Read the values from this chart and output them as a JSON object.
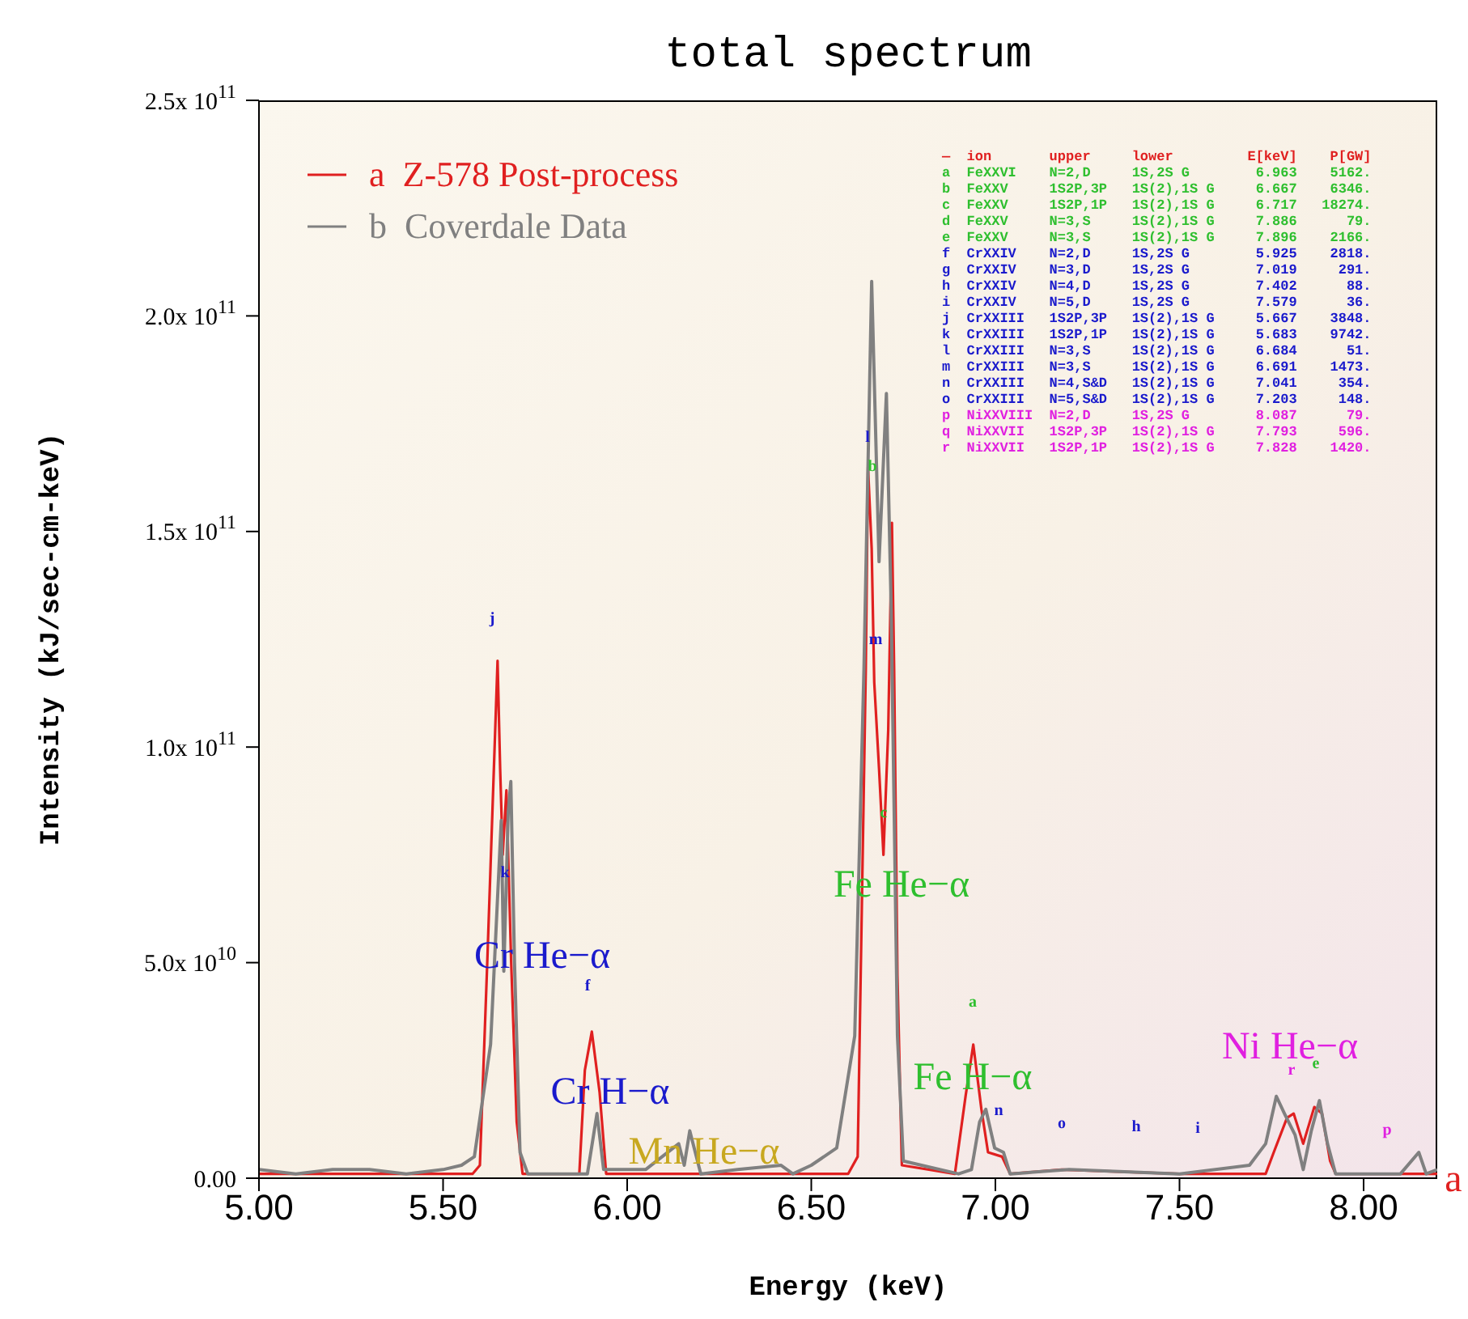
{
  "chart_data": {
    "type": "line",
    "title": "total spectrum",
    "xlabel": "Energy (keV)",
    "ylabel": "Intensity (kJ/sec-cm-keV)",
    "xlim": [
      5,
      8.2
    ],
    "xticks": [
      {
        "value": 5,
        "label": "5.00"
      },
      {
        "value": 5.5,
        "label": "5.50"
      },
      {
        "value": 6,
        "label": "6.00"
      },
      {
        "value": 6.5,
        "label": "6.50"
      },
      {
        "value": 7,
        "label": "7.00"
      },
      {
        "value": 7.5,
        "label": "7.50"
      },
      {
        "value": 8,
        "label": "8.00"
      }
    ],
    "ylim": [
      0,
      250000000000.0
    ],
    "yticks": [
      {
        "value": 0,
        "label": "0.00"
      },
      {
        "value": 50000000000.0,
        "label": "5.0x 10$^{10}$"
      },
      {
        "value": 100000000000.0,
        "label": "1.0x 10$^{11}$"
      },
      {
        "value": 150000000000.0,
        "label": "1.5x 10$^{11}$"
      },
      {
        "value": 200000000000.0,
        "label": "2.0x 10$^{11}$"
      },
      {
        "value": 250000000000.0,
        "label": "2.5x 10$^{11}$"
      }
    ],
    "legend": "top left",
    "series": [
      {
        "name": "a  Z-578 Post-process",
        "color": "#e02020",
        "x": [
          5.0,
          5.2,
          5.4,
          5.58,
          5.6,
          5.62,
          5.648,
          5.655,
          5.662,
          5.672,
          5.685,
          5.7,
          5.716,
          5.87,
          5.885,
          5.904,
          5.925,
          5.943,
          6.2,
          6.4,
          6.6,
          6.626,
          6.648,
          6.654,
          6.664,
          6.671,
          6.684,
          6.696,
          6.709,
          6.719,
          6.725,
          6.734,
          6.746,
          6.89,
          6.919,
          6.94,
          6.962,
          6.98,
          7.018,
          7.04,
          7.18,
          7.5,
          7.734,
          7.756,
          7.792,
          7.81,
          7.836,
          7.866,
          7.887,
          7.909,
          7.924,
          8.2
        ],
        "values": [
          1000000000.0,
          1000000000.0,
          1000000000.0,
          1000000000.0,
          3000000000.0,
          50000000000.0,
          120000000000.0,
          95000000000.0,
          75000000000.0,
          90000000000.0,
          50000000000.0,
          13000000000.0,
          1000000000.0,
          1000000000.0,
          25000000000.0,
          34000000000.0,
          20000000000.0,
          1000000000.0,
          1000000000.0,
          1000000000.0,
          1000000000.0,
          5000000000.0,
          118000000000.0,
          165000000000.0,
          146000000000.0,
          115000000000.0,
          95000000000.0,
          75000000000.0,
          104000000000.0,
          152000000000.0,
          118000000000.0,
          47000000000.0,
          3000000000.0,
          1000000000.0,
          19000000000.0,
          31000000000.0,
          16000000000.0,
          6000000000.0,
          5000000000.0,
          1000000000.0,
          2000000000.0,
          1000000000.0,
          1000000000.0,
          6000000000.0,
          14000000000.0,
          15000000000.0,
          8000000000.0,
          16500000000.0,
          15000000000.0,
          4000000000.0,
          1000000000.0,
          1000000000.0
        ]
      },
      {
        "name": "b  Coverdale Data",
        "color": "#808080",
        "x": [
          5.0,
          5.1,
          5.2,
          5.3,
          5.4,
          5.5,
          5.55,
          5.585,
          5.629,
          5.658,
          5.665,
          5.677,
          5.684,
          5.694,
          5.709,
          5.73,
          5.892,
          5.918,
          5.936,
          6.05,
          6.14,
          6.155,
          6.17,
          6.2,
          6.3,
          6.418,
          6.45,
          6.5,
          6.569,
          6.618,
          6.643,
          6.664,
          6.684,
          6.704,
          6.717,
          6.734,
          6.75,
          6.9,
          6.935,
          6.957,
          6.974,
          6.998,
          7.022,
          7.04,
          7.2,
          7.5,
          7.69,
          7.734,
          7.763,
          7.785,
          7.814,
          7.836,
          7.858,
          7.88,
          7.902,
          7.924,
          8.1,
          8.15,
          8.17,
          8.2
        ],
        "values": [
          2000000000.0,
          1000000000.0,
          2000000000.0,
          2000000000.0,
          1000000000.0,
          2000000000.0,
          3000000000.0,
          5000000000.0,
          31000000000.0,
          83000000000.0,
          48000000000.0,
          85000000000.0,
          92000000000.0,
          50000000000.0,
          6000000000.0,
          1000000000.0,
          1000000000.0,
          15000000000.0,
          2000000000.0,
          2000000000.0,
          8000000000.0,
          3000000000.0,
          11000000000.0,
          1000000000.0,
          2000000000.0,
          3000000000.0,
          1000000000.0,
          3000000000.0,
          7000000000.0,
          33000000000.0,
          118000000000.0,
          208000000000.0,
          143000000000.0,
          182000000000.0,
          132000000000.0,
          33000000000.0,
          4000000000.0,
          1000000000.0,
          2000000000.0,
          13000000000.0,
          16000000000.0,
          7000000000.0,
          6000000000.0,
          1000000000.0,
          2000000000.0,
          1000000000.0,
          3000000000.0,
          8000000000.0,
          19000000000.0,
          15000000000.0,
          10000000000.0,
          2000000000.0,
          11000000000.0,
          18000000000.0,
          8000000000.0,
          1000000000.0,
          1000000000.0,
          6000000000.0,
          1000000000.0,
          2000000000.0
        ]
      }
    ],
    "annotations": [
      "Cr He−α",
      "Cr H−α",
      "Mn He−α",
      "Fe He−α",
      "Fe H−α",
      "Ni He−α",
      "j",
      "k",
      "f",
      "l",
      "b",
      "m",
      "c",
      "a",
      "n",
      "o",
      "h",
      "i",
      "r",
      "e",
      "p",
      "a",
      "—  ion       upper     lower         E[keV]    P[GW]",
      "a  FeXXVI    N=2,D     1S,2S G        6.963    5162.",
      "b  FeXXV     1S2P,3P   1S(2),1S G     6.667    6346.",
      "c  FeXXV     1S2P,1P   1S(2),1S G     6.717   18274.",
      "d  FeXXV     N=3,S     1S(2),1S G     7.886      79.",
      "e  FeXXV     N=3,S     1S(2),1S G     7.896    2166.",
      "f  CrXXIV    N=2,D     1S,2S G        5.925    2818.",
      "g  CrXXIV    N=3,D     1S,2S G        7.019     291.",
      "h  CrXXIV    N=4,D     1S,2S G        7.402      88.",
      "i  CrXXIV    N=5,D     1S,2S G        7.579      36.",
      "j  CrXXIII   1S2P,3P   1S(2),1S G     5.667    3848.",
      "k  CrXXIII   1S2P,1P   1S(2),1S G     5.683    9742.",
      "l  CrXXIII   N=3,S     1S(2),1S G     6.684      51.",
      "m  CrXXIII   N=3,S     1S(2),1S G     6.691    1473.",
      "n  CrXXIII   N=4,S&D   1S(2),1S G     7.041     354.",
      "o  CrXXIII   N=5,S&D   1S(2),1S G     7.203     148.",
      "p  NiXXVIII  N=2,D     1S,2S G        8.087      79.",
      "q  NiXXVII   1S2P,3P   1S(2),1S G     7.793     596.",
      "r  NiXXVII   1S2P,1P   1S(2),1S G     7.828    1420."
    ]
  }
}
